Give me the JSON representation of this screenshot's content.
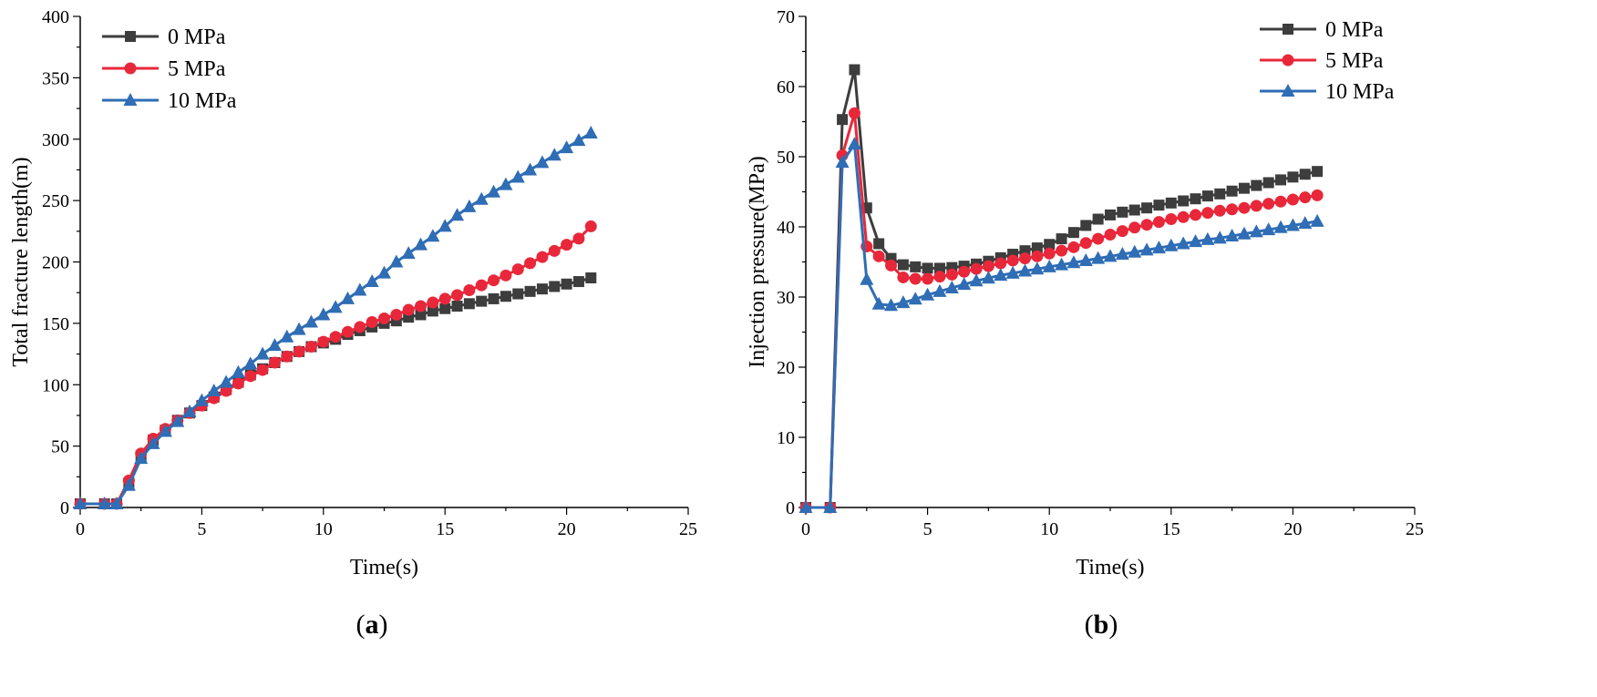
{
  "colors": {
    "s0": "#3d3d3d",
    "s5": "#e8283a",
    "s10": "#2f6db5"
  },
  "chart_data": [
    {
      "type": "line",
      "panel": "a",
      "xlabel": "Time(s)",
      "ylabel": "Total fracture length(m)",
      "xlim": [
        0,
        25
      ],
      "ylim": [
        0,
        400
      ],
      "xticks": [
        0,
        5,
        10,
        15,
        20,
        25
      ],
      "yticks": [
        0,
        50,
        100,
        150,
        200,
        250,
        300,
        350,
        400
      ],
      "legend_position": "top-left",
      "x": [
        0,
        1,
        1.5,
        2,
        2.5,
        3,
        3.5,
        4,
        4.5,
        5,
        5.5,
        6,
        6.5,
        7,
        7.5,
        8,
        8.5,
        9,
        9.5,
        10,
        10.5,
        11,
        11.5,
        12,
        12.5,
        13,
        13.5,
        14,
        14.5,
        15,
        15.5,
        16,
        16.5,
        17,
        17.5,
        18,
        18.5,
        19,
        19.5,
        20,
        20.5,
        21
      ],
      "series": [
        {
          "name": "0 MPa",
          "marker": "square",
          "color_key": "s0",
          "values": [
            3,
            3,
            3,
            20,
            42,
            55,
            63,
            71,
            77,
            83,
            90,
            96,
            102,
            108,
            113,
            118,
            123,
            127,
            131,
            134,
            137,
            141,
            144,
            147,
            150,
            152,
            155,
            157,
            160,
            162,
            164,
            166,
            168,
            170,
            172,
            174,
            176,
            178,
            180,
            182,
            184,
            187
          ]
        },
        {
          "name": "5 MPa",
          "marker": "circle",
          "color_key": "s5",
          "values": [
            3,
            3,
            3,
            22,
            44,
            56,
            64,
            71,
            77,
            83,
            89,
            95,
            101,
            107,
            112,
            118,
            123,
            127,
            131,
            135,
            139,
            143,
            147,
            151,
            154,
            157,
            161,
            164,
            167,
            170,
            173,
            177,
            181,
            185,
            189,
            194,
            199,
            204,
            209,
            214,
            219,
            229
          ]
        },
        {
          "name": "10 MPa",
          "marker": "triangle",
          "color_key": "s10",
          "values": [
            3,
            3,
            3,
            18,
            40,
            52,
            62,
            70,
            78,
            87,
            95,
            102,
            110,
            117,
            125,
            132,
            139,
            145,
            151,
            157,
            163,
            170,
            177,
            184,
            191,
            200,
            207,
            214,
            221,
            229,
            238,
            245,
            251,
            257,
            263,
            269,
            275,
            281,
            287,
            293,
            299,
            305
          ]
        }
      ],
      "panel_label": "(a)"
    },
    {
      "type": "line",
      "panel": "b",
      "xlabel": "Time(s)",
      "ylabel": "Injection pressure(MPa)",
      "xlim": [
        0,
        25
      ],
      "ylim": [
        0,
        70
      ],
      "xticks": [
        0,
        5,
        10,
        15,
        20,
        25
      ],
      "yticks": [
        0,
        10,
        20,
        30,
        40,
        50,
        60,
        70
      ],
      "legend_position": "top-right",
      "x": [
        0,
        1,
        1.5,
        2,
        2.5,
        3,
        3.5,
        4,
        4.5,
        5,
        5.5,
        6,
        6.5,
        7,
        7.5,
        8,
        8.5,
        9,
        9.5,
        10,
        10.5,
        11,
        11.5,
        12,
        12.5,
        13,
        13.5,
        14,
        14.5,
        15,
        15.5,
        16,
        16.5,
        17,
        17.5,
        18,
        18.5,
        19,
        19.5,
        20,
        20.5,
        21
      ],
      "series": [
        {
          "name": "0 MPa",
          "marker": "square",
          "color_key": "s0",
          "values": [
            0,
            0,
            55.3,
            62.4,
            42.7,
            37.6,
            35.5,
            34.6,
            34.3,
            34.1,
            34.1,
            34.2,
            34.4,
            34.7,
            35.1,
            35.6,
            36.1,
            36.6,
            37.0,
            37.5,
            38.3,
            39.2,
            40.2,
            41.1,
            41.7,
            42.1,
            42.4,
            42.7,
            43.1,
            43.4,
            43.7,
            44.0,
            44.4,
            44.7,
            45.1,
            45.5,
            45.9,
            46.3,
            46.7,
            47.1,
            47.5,
            47.9
          ]
        },
        {
          "name": "5 MPa",
          "marker": "circle",
          "color_key": "s5",
          "values": [
            0,
            0,
            50.2,
            56.2,
            37.2,
            35.8,
            34.5,
            32.8,
            32.6,
            32.6,
            32.9,
            33.2,
            33.6,
            34.0,
            34.4,
            34.8,
            35.2,
            35.5,
            35.8,
            36.2,
            36.6,
            37.1,
            37.7,
            38.3,
            38.9,
            39.4,
            39.9,
            40.3,
            40.7,
            41.1,
            41.4,
            41.7,
            42.0,
            42.3,
            42.5,
            42.7,
            43.0,
            43.3,
            43.6,
            43.9,
            44.2,
            44.5
          ]
        },
        {
          "name": "10 MPa",
          "marker": "triangle",
          "color_key": "s10",
          "values": [
            0,
            0,
            49.2,
            51.8,
            32.5,
            29.0,
            28.8,
            29.2,
            29.7,
            30.3,
            30.8,
            31.3,
            31.8,
            32.3,
            32.7,
            33.1,
            33.4,
            33.7,
            34.0,
            34.3,
            34.6,
            34.9,
            35.2,
            35.5,
            35.8,
            36.1,
            36.4,
            36.7,
            37.0,
            37.3,
            37.6,
            37.9,
            38.2,
            38.4,
            38.7,
            39.0,
            39.3,
            39.6,
            39.9,
            40.2,
            40.5,
            40.8
          ]
        }
      ],
      "panel_label": "(b)"
    }
  ]
}
